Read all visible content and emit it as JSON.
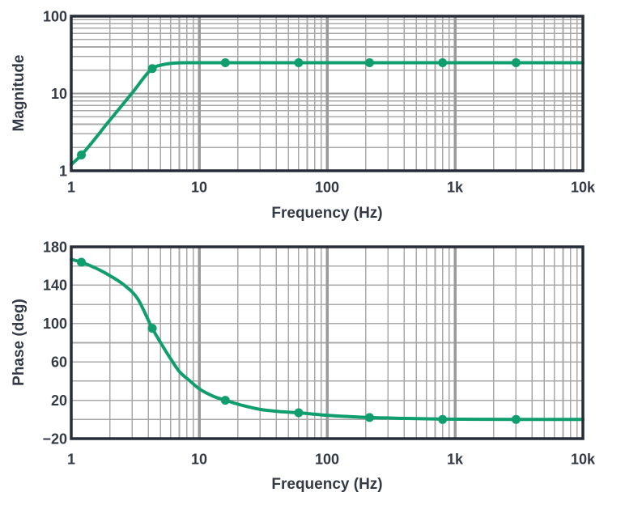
{
  "figure": {
    "background": "#ffffff",
    "line_color": "#119e6e",
    "grid_minor_color": "#a9a9a9",
    "grid_major_color": "#9a9a9a",
    "axis_border_color": "#262d38",
    "text_color": "#333a45"
  },
  "chart_data": [
    {
      "type": "line",
      "id": "magnitude-bode-plot",
      "title": "",
      "xlabel": "Frequency (Hz)",
      "ylabel": "Magnitude",
      "legend": "none",
      "grid": "log minor gridlines on both axes, thick gridlines at frequency decades",
      "x_axis": {
        "scale": "log",
        "min": 1,
        "max": 10000,
        "ticks": [
          {
            "v": 1,
            "label": "1"
          },
          {
            "v": 10,
            "label": "10"
          },
          {
            "v": 100,
            "label": "100"
          },
          {
            "v": 1000,
            "label": "1k"
          },
          {
            "v": 10000,
            "label": "10k"
          }
        ]
      },
      "y_axis": {
        "scale": "log",
        "min": 1,
        "max": 100,
        "ticks": [
          {
            "v": 1,
            "label": "1"
          },
          {
            "v": 10,
            "label": "10"
          },
          {
            "v": 100,
            "label": "100"
          }
        ]
      },
      "series": [
        {
          "name": "magnitude-response",
          "color": "#119e6e",
          "points": [
            [
              1.2,
              1.6
            ],
            [
              4.3,
              21
            ],
            [
              16,
              25
            ],
            [
              60,
              25
            ],
            [
              215,
              25
            ],
            [
              800,
              25
            ],
            [
              3000,
              25
            ]
          ],
          "curve": [
            [
              1,
              1.2
            ],
            [
              1.2,
              1.6
            ],
            [
              2,
              4.5
            ],
            [
              3,
              10.2
            ],
            [
              4.3,
              21
            ],
            [
              5.2,
              23.6
            ],
            [
              6.5,
              24.8
            ],
            [
              8,
              25
            ],
            [
              10,
              25
            ],
            [
              10000,
              25
            ]
          ]
        }
      ]
    },
    {
      "type": "line",
      "id": "phase-bode-plot",
      "title": "",
      "xlabel": "Frequency (Hz)",
      "ylabel": "Phase (deg)",
      "legend": "none",
      "grid": "horizontal gridlines every 20 deg, log minor gridlines on x, thick gridlines at frequency decades",
      "x_axis": {
        "scale": "log",
        "min": 1,
        "max": 10000,
        "ticks": [
          {
            "v": 1,
            "label": "1"
          },
          {
            "v": 10,
            "label": "10"
          },
          {
            "v": 100,
            "label": "100"
          },
          {
            "v": 1000,
            "label": "1k"
          },
          {
            "v": 10000,
            "label": "10k"
          }
        ]
      },
      "y_axis": {
        "scale": "linear",
        "min": -20,
        "max": 180,
        "grid_step": 20,
        "ticks": [
          {
            "v": -20,
            "label": "−20"
          },
          {
            "v": 20,
            "label": "20"
          },
          {
            "v": 60,
            "label": "60"
          },
          {
            "v": 100,
            "label": "100"
          },
          {
            "v": 140,
            "label": "140"
          },
          {
            "v": 180,
            "label": "180"
          }
        ]
      },
      "series": [
        {
          "name": "phase-response",
          "color": "#119e6e",
          "points": [
            [
              1.2,
              164
            ],
            [
              4.3,
              95
            ],
            [
              16,
              20
            ],
            [
              60,
              7
            ],
            [
              215,
              2
            ],
            [
              800,
              0
            ],
            [
              3000,
              0
            ]
          ],
          "curve": [
            [
              1,
              167
            ],
            [
              1.2,
              164
            ],
            [
              1.6,
              157
            ],
            [
              2,
              150
            ],
            [
              2.6,
              140
            ],
            [
              3.3,
              126
            ],
            [
              4.3,
              95
            ],
            [
              5,
              80
            ],
            [
              6,
              63
            ],
            [
              7,
              50
            ],
            [
              8.5,
              40
            ],
            [
              10,
              32
            ],
            [
              13,
              24
            ],
            [
              16,
              20
            ],
            [
              22,
              14.5
            ],
            [
              30,
              10.5
            ],
            [
              42,
              8.3
            ],
            [
              60,
              7
            ],
            [
              90,
              4.8
            ],
            [
              140,
              3.2
            ],
            [
              215,
              2
            ],
            [
              400,
              1.1
            ],
            [
              800,
              0.4
            ],
            [
              1600,
              0.15
            ],
            [
              3000,
              0
            ],
            [
              10000,
              0
            ]
          ]
        }
      ]
    }
  ]
}
